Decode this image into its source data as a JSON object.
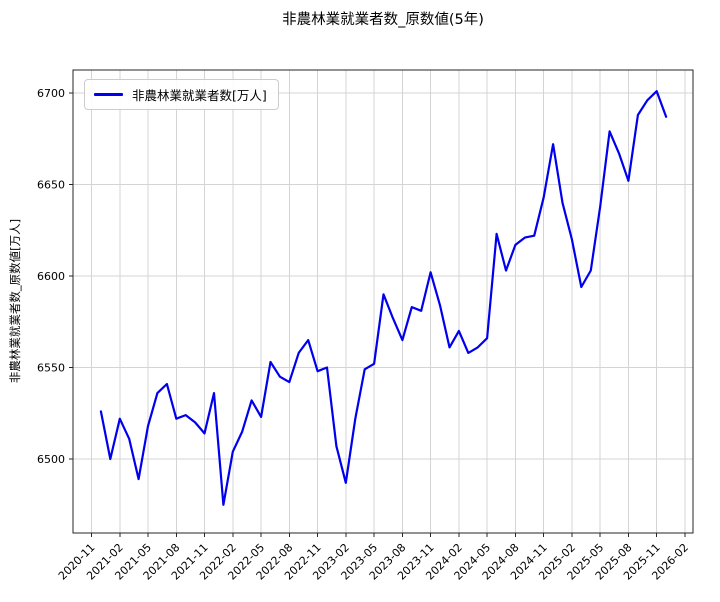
{
  "title": "非農林業就業者数_原数値(5年)",
  "y_axis_label": "非農林業就業者数_原数値[万人]",
  "legend": {
    "label": "非農林業就業者数[万人]"
  },
  "colors": {
    "line": "#0000ee",
    "grid": "#d4d4d4",
    "spine": "#262626",
    "tick_text": "#000000"
  },
  "chart_data": {
    "type": "line",
    "title": "非農林業就業者数_原数値(5年)",
    "xlabel": "",
    "ylabel": "非農林業就業者数_原数値[万人]",
    "series_name": "非農林業就業者数[万人]",
    "grid": true,
    "legend_position": "upper left",
    "ylim": [
      6460,
      6713
    ],
    "y_ticks": [
      6500,
      6550,
      6600,
      6650,
      6700
    ],
    "x_tick_labels": [
      "2020-11",
      "2021-02",
      "2021-05",
      "2021-08",
      "2021-11",
      "2022-02",
      "2022-05",
      "2022-08",
      "2022-11",
      "2023-02",
      "2023-05",
      "2023-08",
      "2023-11",
      "2024-02",
      "2024-05",
      "2024-08",
      "2024-11",
      "2025-02",
      "2025-05",
      "2025-08",
      "2025-11",
      "2026-02"
    ],
    "x": [
      "2020-12",
      "2021-01",
      "2021-02",
      "2021-03",
      "2021-04",
      "2021-05",
      "2021-06",
      "2021-07",
      "2021-08",
      "2021-09",
      "2021-10",
      "2021-11",
      "2021-12",
      "2022-01",
      "2022-02",
      "2022-03",
      "2022-04",
      "2022-05",
      "2022-06",
      "2022-07",
      "2022-08",
      "2022-09",
      "2022-10",
      "2022-11",
      "2022-12",
      "2023-01",
      "2023-02",
      "2023-03",
      "2023-04",
      "2023-05",
      "2023-06",
      "2023-07",
      "2023-08",
      "2023-09",
      "2023-10",
      "2023-11",
      "2023-12",
      "2024-01",
      "2024-02",
      "2024-03",
      "2024-04",
      "2024-05",
      "2024-06",
      "2024-07",
      "2024-08",
      "2024-09",
      "2024-10",
      "2024-11",
      "2024-12",
      "2025-01",
      "2025-02",
      "2025-03",
      "2025-04",
      "2025-05",
      "2025-06",
      "2025-07",
      "2025-08",
      "2025-09",
      "2025-10",
      "2025-11",
      "2025-12"
    ],
    "values": [
      6526,
      6500,
      6522,
      6511,
      6489,
      6518,
      6536,
      6541,
      6522,
      6524,
      6520,
      6514,
      6536,
      6475,
      6504,
      6515,
      6532,
      6523,
      6553,
      6545,
      6542,
      6558,
      6565,
      6548,
      6550,
      6507,
      6487,
      6522,
      6549,
      6552,
      6590,
      6577,
      6565,
      6583,
      6581,
      6602,
      6584,
      6561,
      6570,
      6558,
      6561,
      6566,
      6623,
      6603,
      6617,
      6621,
      6622,
      6643,
      6672,
      6640,
      6620,
      6594,
      6603,
      6638,
      6679,
      6667,
      6652,
      6688,
      6696,
      6701,
      6687
    ]
  }
}
